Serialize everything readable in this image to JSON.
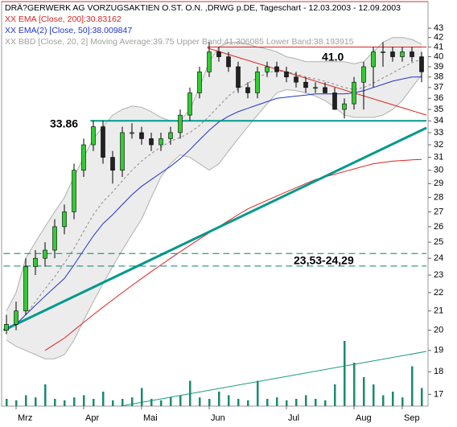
{
  "chart_data": {
    "type": "candlestick",
    "title": "DRÄ?GERWERK AG VORZUGSAKTIEN O.ST. O.N. ,DRWG p.DE, Tageschart - 12.03.2003 - 12.09.2003",
    "log_scale": true,
    "grid": false,
    "categories": [
      null,
      "Mrz",
      null,
      null,
      null,
      null,
      null,
      null,
      "Apr",
      null,
      null,
      null,
      null,
      null,
      "Mai",
      null,
      null,
      null,
      null,
      null,
      null,
      "Jun",
      null,
      null,
      null,
      null,
      null,
      null,
      null,
      "Jul",
      null,
      null,
      null,
      null,
      null,
      null,
      "Aug",
      null,
      null,
      null,
      null,
      "Sep",
      null,
      null
    ],
    "open": [
      20,
      20.3,
      21,
      23.5,
      24,
      24.5,
      26,
      27,
      30,
      32,
      33.5,
      31,
      30,
      33,
      33,
      32.5,
      32,
      32.5,
      33,
      34.5,
      36.5,
      38.5,
      40.5,
      40,
      39,
      37,
      36.5,
      38.5,
      39,
      38.5,
      38,
      37.5,
      37,
      37,
      36.5,
      35,
      35.5,
      37.5,
      39,
      40.5,
      40.5,
      40,
      40.5,
      40
    ],
    "high": [
      20.8,
      21.5,
      24,
      24.5,
      25,
      26.5,
      27.5,
      30.5,
      32.5,
      34,
      34,
      31.5,
      33.5,
      33.8,
      33.5,
      33,
      33,
      33.5,
      35,
      37,
      39,
      41.5,
      41,
      40.5,
      39.5,
      37.5,
      39,
      39.5,
      39.5,
      39,
      38.5,
      38,
      37.5,
      37.5,
      37,
      36,
      38,
      39.5,
      41,
      41.5,
      41,
      41,
      41,
      40.5
    ],
    "low": [
      19.8,
      20,
      20.8,
      23,
      23.5,
      24,
      25.5,
      26.5,
      29.5,
      31.5,
      30.5,
      29,
      29.5,
      32.5,
      32,
      31.5,
      31.5,
      32,
      32.5,
      34,
      36,
      38,
      39.5,
      38.5,
      36.5,
      36,
      36,
      38,
      38,
      37.5,
      37,
      36.5,
      36.5,
      36.5,
      35,
      34.2,
      35,
      35,
      37,
      39,
      39.5,
      39.5,
      39.5,
      37.5
    ],
    "close": [
      20.3,
      21,
      23.5,
      24,
      24.5,
      26,
      27,
      30,
      32,
      33.5,
      31,
      30,
      33,
      33,
      32.5,
      32,
      32.5,
      33,
      34.5,
      36.5,
      38.5,
      40.5,
      40,
      39,
      37,
      36.5,
      38.5,
      39,
      38.5,
      38,
      37.5,
      37,
      37,
      36.5,
      35,
      35.5,
      37.5,
      39,
      40.5,
      40.5,
      40,
      40.5,
      40,
      38.5
    ],
    "up_color": "#33cc33",
    "down_color": "#222222",
    "series": [
      {
        "name": "XX EMA [Close, 200]:30.83162",
        "color": "#dd2222",
        "values": [
          null,
          null,
          null,
          null,
          19,
          19.3,
          19.6,
          20,
          20.4,
          20.8,
          21.2,
          21.6,
          22,
          22.4,
          22.8,
          23.2,
          23.6,
          24,
          24.4,
          24.8,
          25.2,
          25.6,
          26,
          26.4,
          26.8,
          27.2,
          27.5,
          27.8,
          28.1,
          28.4,
          28.7,
          29,
          29.3,
          29.5,
          29.7,
          29.9,
          30.1,
          30.3,
          30.5,
          30.6,
          30.7,
          30.75,
          30.8,
          30.83
        ]
      },
      {
        "name": "XX EMA(2) [Close, 50]:38.009847",
        "color": "#2233cc",
        "values": [
          20,
          20.3,
          20.8,
          21.3,
          21.8,
          22.3,
          22.8,
          23.6,
          24.5,
          25.4,
          26.2,
          26.8,
          27.5,
          28.2,
          28.8,
          29.3,
          29.8,
          30.3,
          30.9,
          31.6,
          32.4,
          33.2,
          33.9,
          34.4,
          34.8,
          35.1,
          35.4,
          35.7,
          36,
          36.1,
          36.2,
          36.3,
          36.4,
          36.4,
          36.4,
          36.4,
          36.5,
          36.7,
          37,
          37.3,
          37.6,
          37.8,
          38,
          38
        ]
      },
      {
        "name": "XX BBD [Close, 20, 2] Moving Average:39.75 Upper Band:41.306085 Lower Band:38.193915",
        "color": "#b0b0b0",
        "fill": "#ececec",
        "values": [
          20,
          20.3,
          20.8,
          21.5,
          22.2,
          22.9,
          23.7,
          24.6,
          25.7,
          26.8,
          27.7,
          28.4,
          29.2,
          30,
          30.7,
          31.3,
          31.8,
          32.3,
          32.6,
          33,
          33.6,
          34.4,
          35.3,
          36.2,
          36.9,
          37.4,
          37.9,
          38.4,
          38.6,
          38.5,
          38.3,
          38,
          37.8,
          37.6,
          37.3,
          37,
          36.8,
          37,
          37.4,
          37.9,
          38.4,
          38.9,
          39.4,
          39.75
        ],
        "upper": [
          21,
          22,
          24,
          25,
          26,
          27,
          28,
          29.5,
          31,
          32.5,
          33.5,
          34.5,
          35,
          35.3,
          35.2,
          34.8,
          34.3,
          34,
          34,
          35,
          37,
          39.5,
          41,
          41.5,
          41.5,
          41.3,
          41,
          40.8,
          40.5,
          40,
          39.8,
          39.5,
          39.5,
          39.5,
          39.5,
          39.5,
          39.3,
          39.5,
          40.5,
          41.5,
          42,
          42,
          41.8,
          41.3
        ],
        "lower": [
          19.5,
          19.2,
          19,
          18.8,
          18.6,
          18.6,
          18.8,
          19.5,
          20.5,
          21.5,
          22.5,
          23.5,
          24.5,
          25.5,
          26.5,
          28,
          29.5,
          30.5,
          31.2,
          31,
          30.5,
          30,
          30.5,
          31.5,
          32.5,
          33.5,
          34.5,
          35.5,
          36.5,
          36.8,
          36.7,
          36.5,
          36.2,
          35.8,
          35.2,
          34.5,
          34.3,
          34.3,
          34.3,
          34.5,
          35,
          35.8,
          37,
          38.19
        ]
      }
    ],
    "volume": {
      "color": "#1a8a70",
      "values": [
        10,
        8,
        15,
        12,
        30,
        10,
        8,
        12,
        15,
        10,
        20,
        8,
        10,
        12,
        25,
        10,
        8,
        12,
        15,
        35,
        12,
        10,
        20,
        15,
        10,
        8,
        35,
        10,
        12,
        8,
        10,
        15,
        10,
        8,
        30,
        90,
        60,
        40,
        30,
        15,
        20,
        12,
        55,
        25
      ]
    },
    "volume_ylim": [
      0,
      100
    ],
    "trendlines": [
      {
        "color": "#00998a",
        "width": 3,
        "x": [
          -0.3,
          43.5
        ],
        "values": [
          20,
          33.4
        ]
      },
      {
        "color": "#00998a",
        "width": 2,
        "x": [
          8.7,
          43.5
        ],
        "values": [
          34,
          34
        ]
      },
      {
        "color": "#dd2222",
        "width": 1,
        "x": [
          20.8,
          43.5
        ],
        "values": [
          40.9,
          34.5
        ]
      },
      {
        "color": "#dd2222",
        "width": 1,
        "x": [
          20.8,
          43.5
        ],
        "values": [
          41,
          41
        ]
      },
      {
        "color": "#00806e",
        "width": 1,
        "dashed": true,
        "x": [
          -0.3,
          43.5
        ],
        "values": [
          23.53,
          23.53
        ]
      },
      {
        "color": "#00806e",
        "width": 1,
        "dashed": true,
        "x": [
          -0.3,
          43.5
        ],
        "values": [
          24.29,
          24.29
        ]
      }
    ],
    "annotations": [
      "41.0",
      "33.86",
      "23,53-24,29"
    ],
    "ylim": [
      16.5,
      46
    ],
    "yticks": [
      17,
      18,
      19,
      20,
      21,
      22,
      23,
      24,
      25,
      26,
      27,
      28,
      29,
      30,
      31,
      32,
      33,
      34,
      35,
      36,
      37,
      38,
      39,
      40,
      41,
      42,
      43
    ]
  }
}
